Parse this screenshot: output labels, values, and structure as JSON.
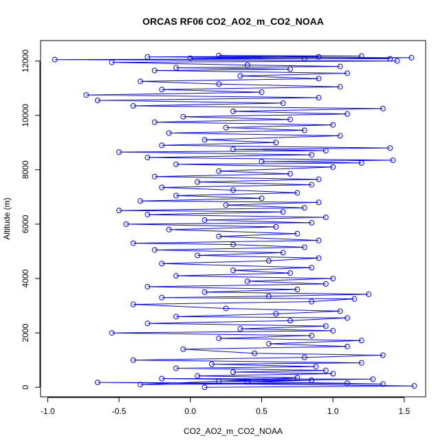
{
  "chart_data": {
    "type": "line",
    "title": "ORCAS RF06 CO2_AO2_m_CO2_NOAA",
    "xlabel": "CO2_AO2_m_CO2_NOAA",
    "ylabel": "Altitude (m)",
    "xlim": [
      -1.05,
      1.65
    ],
    "ylim": [
      -350,
      12750
    ],
    "x_ticks": [
      -1.0,
      -0.5,
      0.0,
      0.5,
      1.0,
      1.5
    ],
    "x_tick_labels": [
      "-1.0",
      "-0.5",
      "0.0",
      "0.5",
      "1.0",
      "1.5"
    ],
    "y_ticks": [
      0,
      2000,
      4000,
      6000,
      8000,
      10000,
      12000
    ],
    "y_tick_labels": [
      "0",
      "2000",
      "4000",
      "6000",
      "8000",
      "10000",
      "12000"
    ],
    "grid": false,
    "legend": "none",
    "series": [
      {
        "color": "#0000ff",
        "marker": "open-circle",
        "points": [
          [
            0.1,
            0
          ],
          [
            1.57,
            50
          ],
          [
            -0.65,
            180
          ],
          [
            1.35,
            120
          ],
          [
            0.2,
            230
          ],
          [
            1.28,
            300
          ],
          [
            -0.2,
            320
          ],
          [
            0.85,
            260
          ],
          [
            0.4,
            200
          ],
          [
            1.1,
            150
          ],
          [
            -0.35,
            100
          ],
          [
            0.75,
            350
          ],
          [
            0.05,
            420
          ],
          [
            1.0,
            500
          ],
          [
            0.3,
            560
          ],
          [
            0.95,
            620
          ],
          [
            -0.1,
            700
          ],
          [
            0.88,
            760
          ],
          [
            0.15,
            850
          ],
          [
            1.2,
            900
          ],
          [
            -0.4,
            1000
          ],
          [
            0.8,
            1100
          ],
          [
            1.35,
            1180
          ],
          [
            0.45,
            1250
          ],
          [
            -0.05,
            1400
          ],
          [
            1.1,
            1500
          ],
          [
            0.55,
            1600
          ],
          [
            1.2,
            1720
          ],
          [
            0.2,
            1800
          ],
          [
            0.85,
            1900
          ],
          [
            -0.55,
            2000
          ],
          [
            1.0,
            2080
          ],
          [
            0.35,
            2150
          ],
          [
            0.95,
            2250
          ],
          [
            -0.3,
            2350
          ],
          [
            0.7,
            2450
          ],
          [
            1.1,
            2550
          ],
          [
            -0.1,
            2600
          ],
          [
            0.6,
            2700
          ],
          [
            1.05,
            2800
          ],
          [
            0.25,
            2900
          ],
          [
            -0.4,
            3050
          ],
          [
            0.85,
            3150
          ],
          [
            1.15,
            3250
          ],
          [
            -0.2,
            3300
          ],
          [
            0.55,
            3350
          ],
          [
            1.25,
            3420
          ],
          [
            0.1,
            3500
          ],
          [
            0.75,
            3600
          ],
          [
            -0.3,
            3700
          ],
          [
            0.95,
            3800
          ],
          [
            0.4,
            3900
          ],
          [
            1.0,
            4000
          ],
          [
            -0.1,
            4100
          ],
          [
            0.7,
            4200
          ],
          [
            0.3,
            4300
          ],
          [
            0.85,
            4400
          ],
          [
            -0.2,
            4550
          ],
          [
            0.55,
            4650
          ],
          [
            0.9,
            4750
          ],
          [
            0.05,
            4850
          ],
          [
            0.65,
            4950
          ],
          [
            -0.25,
            5050
          ],
          [
            0.8,
            5150
          ],
          [
            0.3,
            5250
          ],
          [
            -0.4,
            5300
          ],
          [
            0.9,
            5400
          ],
          [
            0.2,
            5550
          ],
          [
            0.75,
            5650
          ],
          [
            -0.15,
            5800
          ],
          [
            0.6,
            5900
          ],
          [
            -0.45,
            6000
          ],
          [
            0.85,
            6050
          ],
          [
            0.1,
            6150
          ],
          [
            0.95,
            6250
          ],
          [
            -0.3,
            6350
          ],
          [
            0.65,
            6450
          ],
          [
            -0.5,
            6500
          ],
          [
            0.8,
            6600
          ],
          [
            0.25,
            6700
          ],
          [
            0.9,
            6800
          ],
          [
            -0.35,
            6850
          ],
          [
            0.5,
            6950
          ],
          [
            -0.1,
            7050
          ],
          [
            0.75,
            7150
          ],
          [
            0.3,
            7250
          ],
          [
            -0.2,
            7350
          ],
          [
            0.85,
            7450
          ],
          [
            0.05,
            7550
          ],
          [
            0.9,
            7650
          ],
          [
            -0.25,
            7750
          ],
          [
            0.7,
            7850
          ],
          [
            0.2,
            7950
          ],
          [
            1.0,
            8100
          ],
          [
            -0.1,
            8200
          ],
          [
            1.2,
            8250
          ],
          [
            0.5,
            8300
          ],
          [
            1.42,
            8350
          ],
          [
            -0.3,
            8450
          ],
          [
            0.85,
            8550
          ],
          [
            -0.5,
            8650
          ],
          [
            0.95,
            8700
          ],
          [
            0.3,
            8750
          ],
          [
            1.4,
            8800
          ],
          [
            -0.2,
            8900
          ],
          [
            0.6,
            9000
          ],
          [
            0.1,
            9100
          ],
          [
            1.05,
            9250
          ],
          [
            -0.15,
            9350
          ],
          [
            0.8,
            9450
          ],
          [
            0.25,
            9550
          ],
          [
            1.0,
            9650
          ],
          [
            -0.25,
            9750
          ],
          [
            0.7,
            9850
          ],
          [
            -0.05,
            9950
          ],
          [
            1.1,
            10050
          ],
          [
            0.3,
            10150
          ],
          [
            1.35,
            10250
          ],
          [
            -0.4,
            10350
          ],
          [
            0.65,
            10450
          ],
          [
            -0.65,
            10550
          ],
          [
            0.9,
            10650
          ],
          [
            -0.73,
            10750
          ],
          [
            0.5,
            10850
          ],
          [
            -0.2,
            10950
          ],
          [
            1.05,
            11050
          ],
          [
            0.2,
            11150
          ],
          [
            -0.35,
            11250
          ],
          [
            0.9,
            11350
          ],
          [
            0.35,
            11450
          ],
          [
            1.1,
            11550
          ],
          [
            -0.25,
            11650
          ],
          [
            0.7,
            11700
          ],
          [
            -0.1,
            11750
          ],
          [
            1.05,
            11800
          ],
          [
            0.4,
            11850
          ],
          [
            -0.55,
            11950
          ],
          [
            1.45,
            12000
          ],
          [
            -0.95,
            12050
          ],
          [
            0.8,
            12080
          ],
          [
            1.55,
            12120
          ],
          [
            -0.3,
            12150
          ],
          [
            1.2,
            12180
          ],
          [
            0.2,
            12200
          ],
          [
            0.9,
            12150
          ],
          [
            0.0,
            12100
          ],
          [
            1.4,
            12080
          ]
        ]
      }
    ]
  }
}
